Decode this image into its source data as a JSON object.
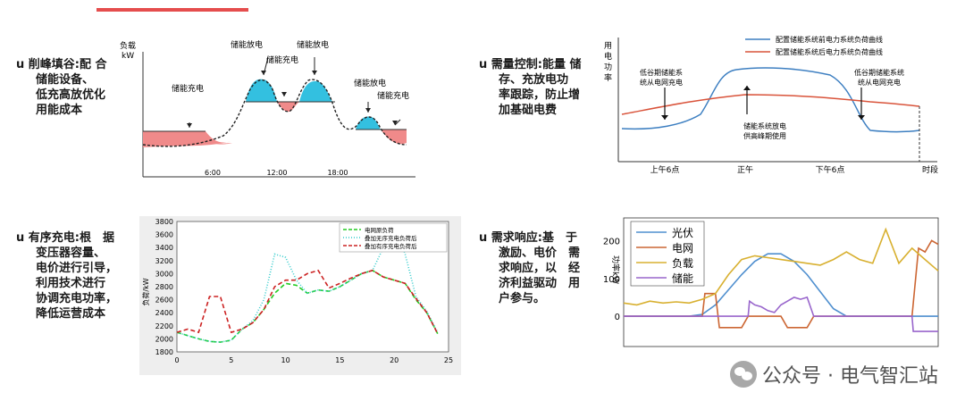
{
  "header": {
    "title_fragment": ""
  },
  "sections": [
    {
      "bullet": "u",
      "title": "削峰填谷:",
      "lines": [
        "配 合",
        "储能设备、",
        "低充高放优化",
        "用能成本"
      ]
    },
    {
      "bullet": "u",
      "title": "需量控制:",
      "lines": [
        "能量 储",
        "存、充放电功",
        "率跟踪，防止增",
        "加基础电费"
      ]
    },
    {
      "bullet": "u",
      "title": "有序充电:",
      "lines": [
        "根　据",
        "变压器容量、",
        "电价进行引导，",
        "利用技术进行",
        "协调充电功率，",
        "降低运营成本"
      ]
    },
    {
      "bullet": "u",
      "title": "需求响应:",
      "lines": [
        "基　于",
        "激励、电价　需",
        "求响应，以　经",
        "济利益驱动　用",
        "户参与。"
      ]
    }
  ],
  "watermark": {
    "text": "公众号 · 电气智汇站"
  },
  "chart_data": [
    {
      "type": "area",
      "ylabel_line1": "负载",
      "ylabel_line2": "kW",
      "x_ticks": [
        "6:00",
        "12:00",
        "18:00"
      ],
      "annotations": [
        "储能充电",
        "储能放电",
        "储能充电",
        "储能放电",
        "储能放电",
        "储能充电"
      ]
    },
    {
      "type": "line",
      "ylabel_chars": [
        "用",
        "电",
        "功",
        "率"
      ],
      "xlabel": "时段",
      "x_ticks": [
        "上午6点",
        "正午",
        "下午6点"
      ],
      "legend": [
        "配置储能系统前电力系统负荷曲线",
        "配置储能系统后电力系统负荷曲线"
      ],
      "annotations": [
        "低谷期储能系",
        "统从电网充电",
        "储能系统放电",
        "供高峰期使用",
        "低谷期储能系统",
        "统从电网充电"
      ],
      "colors": {
        "before": "#3d7fc1",
        "after": "#d9533a"
      }
    },
    {
      "type": "line",
      "ylabel": "负荷/kW",
      "xlim": [
        0,
        25
      ],
      "ylim": [
        1800,
        3800
      ],
      "x_ticks": [
        0,
        5,
        10,
        15,
        20,
        25
      ],
      "y_ticks": [
        1800,
        2000,
        2200,
        2400,
        2600,
        2800,
        3000,
        3200,
        3400,
        3600,
        3800
      ],
      "series": [
        {
          "name": "电网原负荷",
          "color": "#22cc22",
          "x": [
            0,
            1,
            2,
            3,
            4,
            5,
            6,
            7,
            8,
            9,
            10,
            11,
            12,
            13,
            14,
            15,
            16,
            17,
            18,
            19,
            20,
            21,
            22,
            23,
            24
          ],
          "y": [
            2100,
            2050,
            2000,
            1960,
            1950,
            1980,
            2150,
            2250,
            2450,
            2700,
            2850,
            2820,
            2700,
            2750,
            2730,
            2800,
            2900,
            3000,
            3050,
            2950,
            2900,
            2850,
            2600,
            2400,
            2080
          ]
        },
        {
          "name": "叠加无序充电负荷后",
          "color": "#33cccc",
          "x": [
            0,
            1,
            2,
            3,
            4,
            5,
            6,
            7,
            8,
            9,
            10,
            11,
            12,
            13,
            14,
            15,
            16,
            17,
            18,
            19,
            20,
            21,
            22,
            23,
            24
          ],
          "y": [
            2100,
            2050,
            2000,
            1960,
            1950,
            1980,
            2150,
            2280,
            2600,
            3300,
            3250,
            2900,
            2700,
            2750,
            2730,
            2800,
            2900,
            3000,
            3050,
            3400,
            3750,
            3300,
            2650,
            2420,
            2100
          ]
        },
        {
          "name": "叠加有序充电负荷后",
          "color": "#cc2222",
          "x": [
            0,
            1,
            2,
            3,
            4,
            5,
            6,
            7,
            8,
            9,
            10,
            11,
            12,
            13,
            14,
            15,
            16,
            17,
            18,
            19,
            20,
            21,
            22,
            23,
            24
          ],
          "y": [
            2100,
            2150,
            2100,
            2650,
            2650,
            2100,
            2150,
            2250,
            2450,
            2800,
            2900,
            2900,
            3000,
            3050,
            2780,
            2850,
            2930,
            3000,
            3050,
            2950,
            2900,
            2850,
            2620,
            2400,
            2080
          ]
        }
      ]
    },
    {
      "type": "line",
      "ylabel": "功率kW",
      "xlim": [
        0,
        24
      ],
      "ylim": [
        -80,
        260
      ],
      "y_ticks": [
        0,
        100,
        200
      ],
      "series": [
        {
          "name": "光伏",
          "color": "#4f8fcf",
          "x": [
            0,
            5,
            6,
            7,
            8,
            9,
            10,
            11,
            12,
            13,
            14,
            15,
            16,
            17,
            18,
            24
          ],
          "y": [
            0,
            0,
            5,
            30,
            70,
            110,
            145,
            165,
            165,
            145,
            110,
            65,
            20,
            0,
            0,
            0
          ]
        },
        {
          "name": "电网",
          "color": "#cc6633",
          "x": [
            0,
            6,
            6.2,
            7,
            7.3,
            9,
            9.5,
            12,
            12.5,
            14,
            14.5,
            22,
            22.5,
            23,
            23.5,
            24
          ],
          "y": [
            0,
            0,
            60,
            60,
            -30,
            -30,
            0,
            0,
            -30,
            -30,
            0,
            0,
            180,
            170,
            200,
            190
          ]
        },
        {
          "name": "负载",
          "color": "#d8b030",
          "x": [
            0,
            1,
            2,
            3,
            4,
            5,
            6,
            7,
            8,
            9,
            10,
            11,
            12,
            13,
            14,
            15,
            16,
            17,
            18,
            19,
            20,
            21,
            22,
            23,
            24
          ],
          "y": [
            35,
            30,
            40,
            35,
            38,
            35,
            45,
            60,
            110,
            150,
            160,
            155,
            150,
            145,
            140,
            135,
            150,
            170,
            150,
            140,
            230,
            140,
            180,
            150,
            120
          ]
        },
        {
          "name": "储能",
          "color": "#9966cc",
          "x": [
            0,
            9.5,
            9.6,
            10,
            10.5,
            11,
            11.5,
            12,
            12.5,
            13,
            13.5,
            14,
            14.5,
            22,
            22.1,
            24
          ],
          "y": [
            0,
            0,
            40,
            30,
            25,
            15,
            10,
            30,
            40,
            50,
            45,
            50,
            0,
            0,
            -40,
            -40
          ]
        }
      ]
    }
  ]
}
